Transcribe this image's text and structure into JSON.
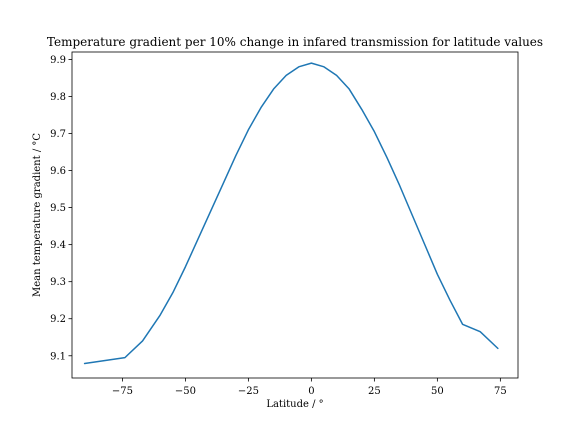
{
  "chart_data": {
    "type": "line",
    "title": "Temperature gradient per 10% change in infared transmission for latitude values",
    "xlabel": "Latitude / °",
    "ylabel": "Mean temperature gradient / °C",
    "xlim": [
      -95,
      82
    ],
    "ylim": [
      9.04,
      9.92
    ],
    "xticks": [
      -75,
      -50,
      -25,
      0,
      25,
      50,
      75
    ],
    "xtick_labels": [
      "−75",
      "−50",
      "−25",
      "0",
      "25",
      "50",
      "75"
    ],
    "yticks": [
      9.1,
      9.2,
      9.3,
      9.4,
      9.5,
      9.6,
      9.7,
      9.8,
      9.9
    ],
    "ytick_labels": [
      "9.1",
      "9.2",
      "9.3",
      "9.4",
      "9.5",
      "9.6",
      "9.7",
      "9.8",
      "9.9"
    ],
    "grid": false,
    "series": [
      {
        "color": "#1f77b4",
        "x": [
          -90,
          -74,
          -67,
          -60,
          -55,
          -50,
          -45,
          -40,
          -35,
          -30,
          -25,
          -20,
          -15,
          -10,
          -5,
          0,
          5,
          10,
          15,
          20,
          25,
          30,
          35,
          40,
          45,
          50,
          55,
          60,
          67,
          74
        ],
        "y": [
          9.079,
          9.095,
          9.14,
          9.21,
          9.27,
          9.34,
          9.415,
          9.49,
          9.565,
          9.64,
          9.71,
          9.77,
          9.82,
          9.857,
          9.88,
          9.89,
          9.88,
          9.857,
          9.82,
          9.765,
          9.705,
          9.635,
          9.56,
          9.48,
          9.4,
          9.32,
          9.25,
          9.185,
          9.165,
          9.12
        ]
      }
    ]
  }
}
